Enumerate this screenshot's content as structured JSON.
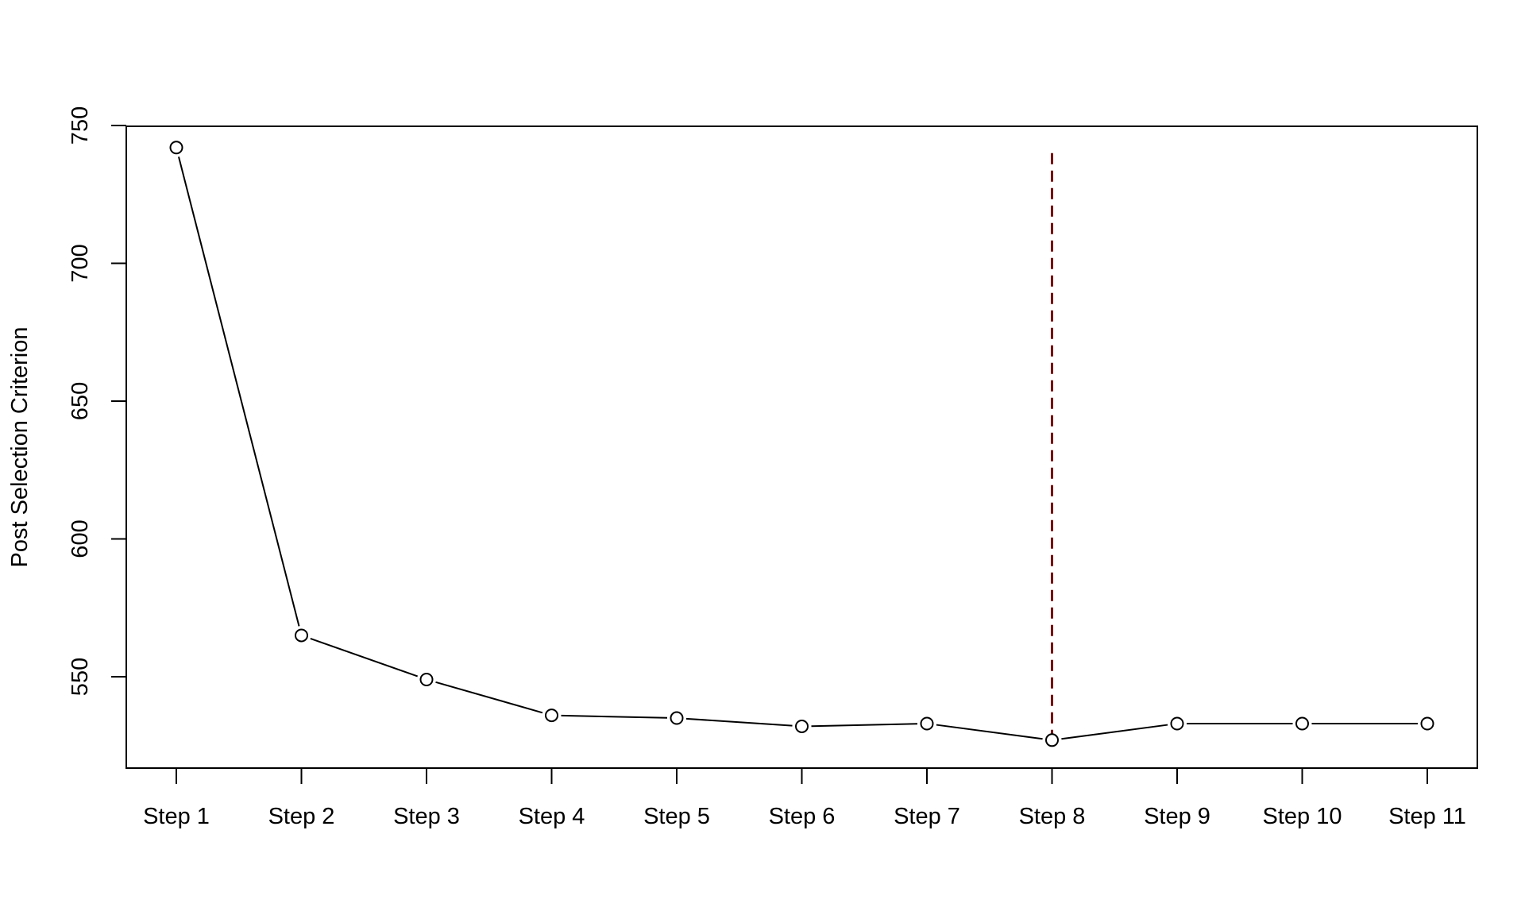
{
  "chart_data": {
    "type": "line",
    "title": "",
    "xlabel": "",
    "ylabel": "Post Selection Criterion",
    "categories": [
      "Step 1",
      "Step 2",
      "Step 3",
      "Step 4",
      "Step 5",
      "Step 6",
      "Step 7",
      "Step 8",
      "Step 9",
      "Step 10",
      "Step 11"
    ],
    "series": [
      {
        "values": [
          742,
          565,
          549,
          536,
          535,
          532,
          533,
          527,
          533,
          533,
          533
        ],
        "marker": "open-circle",
        "color": "#000000"
      }
    ],
    "yticks": [
      550,
      600,
      650,
      700,
      750
    ],
    "ylim": [
      517,
      750
    ],
    "reference_line": {
      "category": "Step 8",
      "y_from": 527,
      "y_to": 740,
      "style": "dashed",
      "color": "#7a0a0a"
    },
    "grid": false,
    "legend": "none"
  }
}
